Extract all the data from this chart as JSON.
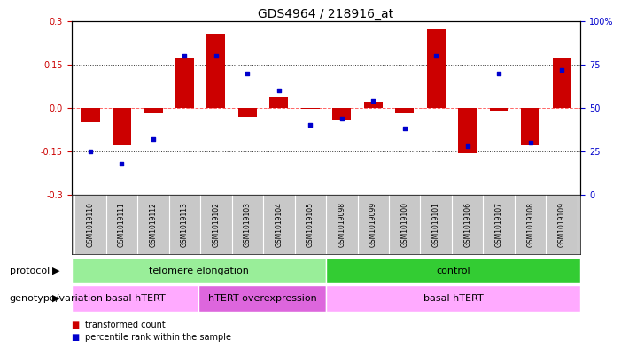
{
  "title": "GDS4964 / 218916_at",
  "samples": [
    "GSM1019110",
    "GSM1019111",
    "GSM1019112",
    "GSM1019113",
    "GSM1019102",
    "GSM1019103",
    "GSM1019104",
    "GSM1019105",
    "GSM1019098",
    "GSM1019099",
    "GSM1019100",
    "GSM1019101",
    "GSM1019106",
    "GSM1019107",
    "GSM1019108",
    "GSM1019109"
  ],
  "red_values": [
    -0.05,
    -0.13,
    -0.02,
    0.175,
    0.255,
    -0.03,
    0.035,
    -0.005,
    -0.04,
    0.02,
    -0.02,
    0.27,
    -0.155,
    -0.01,
    -0.13,
    0.17
  ],
  "blue_values_pct": [
    25,
    18,
    32,
    80,
    80,
    70,
    60,
    40,
    44,
    54,
    38,
    80,
    28,
    70,
    30,
    72
  ],
  "ylim": [
    -0.3,
    0.3
  ],
  "y2lim": [
    0,
    100
  ],
  "yticks": [
    -0.3,
    -0.15,
    0.0,
    0.15,
    0.3
  ],
  "y2ticks": [
    0,
    25,
    50,
    75,
    100
  ],
  "protocol_groups": [
    {
      "label": "telomere elongation",
      "start": 0,
      "end": 8,
      "color": "#99EE99"
    },
    {
      "label": "control",
      "start": 8,
      "end": 16,
      "color": "#33CC33"
    }
  ],
  "genotype_groups": [
    {
      "label": "basal hTERT",
      "start": 0,
      "end": 4,
      "color": "#FFAAFF"
    },
    {
      "label": "hTERT overexpression",
      "start": 4,
      "end": 8,
      "color": "#DD66DD"
    },
    {
      "label": "basal hTERT",
      "start": 8,
      "end": 16,
      "color": "#FFAAFF"
    }
  ],
  "bar_color": "#CC0000",
  "dot_color": "#0000CC",
  "zero_line_color": "#FF6666",
  "hline_color": "#333333",
  "bg_color": "#FFFFFF",
  "tick_label_color_left": "#CC0000",
  "tick_label_color_right": "#0000CC",
  "bar_width": 0.6,
  "dot_size": 12,
  "xlabels_bg": "#C8C8C8",
  "separator_color": "#AAAAAA"
}
